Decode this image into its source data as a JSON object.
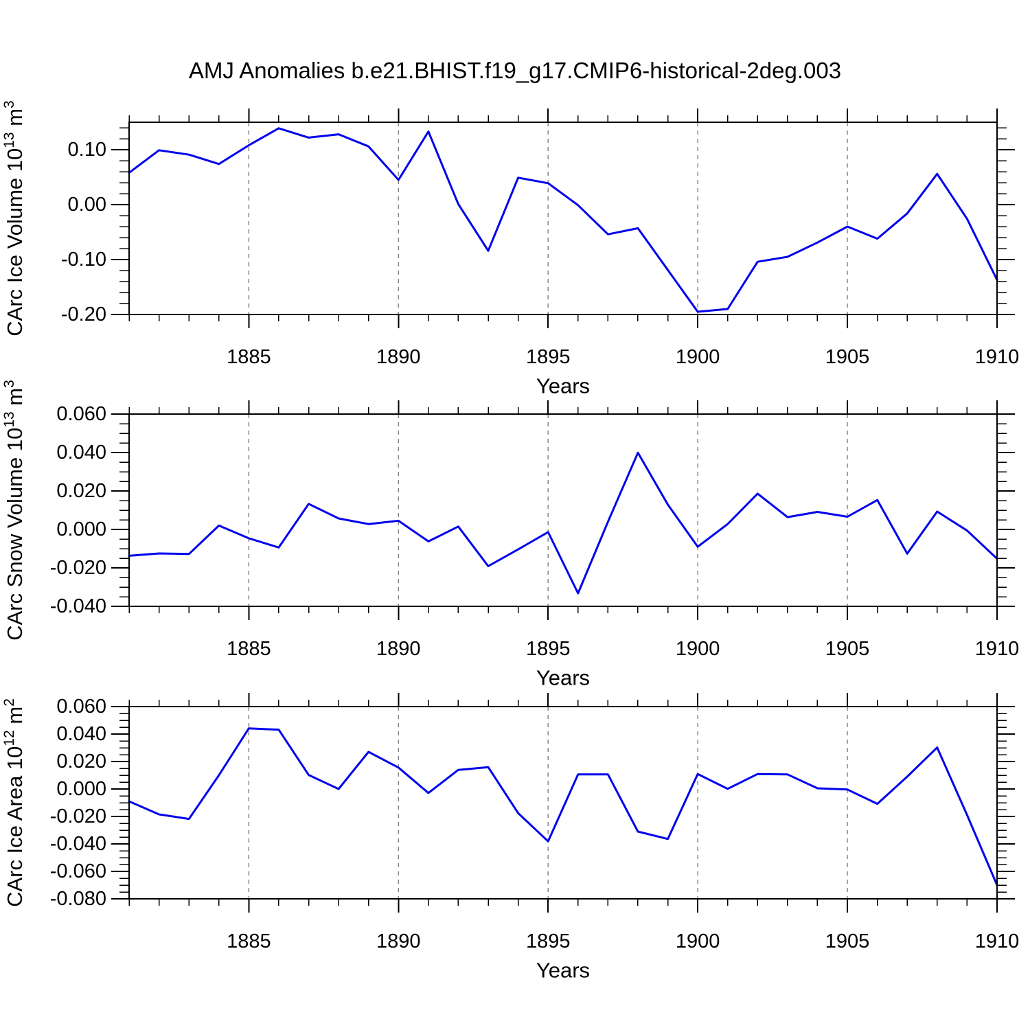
{
  "title": "AMJ Anomalies b.e21.BHIST.f19_g17.CMIP6-historical-2deg.003",
  "colors": {
    "line": "#0000ee",
    "grid": "#888888",
    "frame": "#000000",
    "text": "#000000",
    "background": "#ffffff"
  },
  "chart_data": [
    {
      "id": "ice-volume",
      "type": "line",
      "ylabel": "CArc Ice Volume 10^13 m^3",
      "ylabel_parts": [
        {
          "t": "CArc Ice Volume 10"
        },
        {
          "t": "13",
          "sup": true
        },
        {
          "t": " m"
        },
        {
          "t": "3",
          "sup": true
        }
      ],
      "xlabel": "Years",
      "xlim": [
        1881,
        1910
      ],
      "ylim": [
        -0.2,
        0.15
      ],
      "yminor": 0.02,
      "major_every": 5,
      "yticks": [
        {
          "v": -0.2,
          "label": "-0.20"
        },
        {
          "v": -0.1,
          "label": "-0.10"
        },
        {
          "v": 0.0,
          "label": "0.00"
        },
        {
          "v": 0.1,
          "label": "0.10"
        }
      ],
      "xticks": [
        {
          "v": 1885,
          "label": "1885"
        },
        {
          "v": 1890,
          "label": "1890"
        },
        {
          "v": 1895,
          "label": "1895"
        },
        {
          "v": 1900,
          "label": "1900"
        },
        {
          "v": 1905,
          "label": "1905"
        },
        {
          "v": 1910,
          "label": "1910"
        }
      ],
      "grid_x": [
        1885,
        1890,
        1895,
        1900,
        1905
      ],
      "years": [
        1881,
        1882,
        1883,
        1884,
        1885,
        1886,
        1887,
        1888,
        1889,
        1890,
        1891,
        1892,
        1893,
        1894,
        1895,
        1896,
        1897,
        1898,
        1899,
        1900,
        1901,
        1902,
        1903,
        1904,
        1905,
        1906,
        1907,
        1908,
        1909,
        1910
      ],
      "values": [
        0.058,
        0.099,
        0.091,
        0.074,
        0.108,
        0.139,
        0.122,
        0.128,
        0.106,
        0.045,
        0.133,
        0.001,
        -0.084,
        0.049,
        0.039,
        -0.001,
        -0.054,
        -0.043,
        -0.119,
        -0.195,
        -0.19,
        -0.104,
        -0.095,
        -0.069,
        -0.04,
        -0.062,
        -0.016,
        0.056,
        -0.026,
        -0.137
      ]
    },
    {
      "id": "snow-volume",
      "type": "line",
      "ylabel": "CArc Snow Volume 10^13 m^3",
      "ylabel_parts": [
        {
          "t": "CArc Snow Volume 10"
        },
        {
          "t": "13",
          "sup": true
        },
        {
          "t": " m"
        },
        {
          "t": "3",
          "sup": true
        }
      ],
      "xlabel": "Years",
      "xlim": [
        1881,
        1910
      ],
      "ylim": [
        -0.04,
        0.06
      ],
      "yminor": 0.005,
      "major_every": 4,
      "yticks": [
        {
          "v": -0.04,
          "label": "-0.040"
        },
        {
          "v": -0.02,
          "label": "-0.020"
        },
        {
          "v": 0.0,
          "label": "0.000"
        },
        {
          "v": 0.02,
          "label": "0.020"
        },
        {
          "v": 0.04,
          "label": "0.040"
        },
        {
          "v": 0.06,
          "label": "0.060"
        }
      ],
      "xticks": [
        {
          "v": 1885,
          "label": "1885"
        },
        {
          "v": 1890,
          "label": "1890"
        },
        {
          "v": 1895,
          "label": "1895"
        },
        {
          "v": 1900,
          "label": "1900"
        },
        {
          "v": 1905,
          "label": "1905"
        },
        {
          "v": 1910,
          "label": "1910"
        }
      ],
      "grid_x": [
        1885,
        1890,
        1895,
        1900,
        1905
      ],
      "years": [
        1881,
        1882,
        1883,
        1884,
        1885,
        1886,
        1887,
        1888,
        1889,
        1890,
        1891,
        1892,
        1893,
        1894,
        1895,
        1896,
        1897,
        1898,
        1899,
        1900,
        1901,
        1902,
        1903,
        1904,
        1905,
        1906,
        1907,
        1908,
        1909,
        1910
      ],
      "values": [
        -0.0137,
        -0.0125,
        -0.0128,
        0.002,
        -0.0046,
        -0.0094,
        0.0133,
        0.0057,
        0.0028,
        0.0045,
        -0.0062,
        0.0015,
        -0.0191,
        -0.0104,
        -0.0014,
        -0.0332,
        0.004,
        0.0399,
        0.0129,
        -0.009,
        0.0028,
        0.0186,
        0.0064,
        0.0091,
        0.0066,
        0.0153,
        -0.0126,
        0.0093,
        -0.0006,
        -0.0152
      ]
    },
    {
      "id": "ice-area",
      "type": "line",
      "ylabel": "CArc Ice Area 10^12 m^2",
      "ylabel_parts": [
        {
          "t": "CArc Ice Area 10"
        },
        {
          "t": "12",
          "sup": true
        },
        {
          "t": " m"
        },
        {
          "t": "2",
          "sup": true
        }
      ],
      "xlabel": "Years",
      "xlim": [
        1881,
        1910
      ],
      "ylim": [
        -0.08,
        0.06
      ],
      "yminor": 0.005,
      "major_every": 4,
      "yticks": [
        {
          "v": -0.08,
          "label": "-0.080"
        },
        {
          "v": -0.06,
          "label": "-0.060"
        },
        {
          "v": -0.04,
          "label": "-0.040"
        },
        {
          "v": -0.02,
          "label": "-0.020"
        },
        {
          "v": 0.0,
          "label": "0.000"
        },
        {
          "v": 0.02,
          "label": "0.020"
        },
        {
          "v": 0.04,
          "label": "0.040"
        },
        {
          "v": 0.06,
          "label": "0.060"
        }
      ],
      "xticks": [
        {
          "v": 1885,
          "label": "1885"
        },
        {
          "v": 1890,
          "label": "1890"
        },
        {
          "v": 1895,
          "label": "1895"
        },
        {
          "v": 1900,
          "label": "1900"
        },
        {
          "v": 1905,
          "label": "1905"
        },
        {
          "v": 1910,
          "label": "1910"
        }
      ],
      "grid_x": [
        1885,
        1890,
        1895,
        1900,
        1905
      ],
      "years": [
        1881,
        1882,
        1883,
        1884,
        1885,
        1886,
        1887,
        1888,
        1889,
        1890,
        1891,
        1892,
        1893,
        1894,
        1895,
        1896,
        1897,
        1898,
        1899,
        1900,
        1901,
        1902,
        1903,
        1904,
        1905,
        1906,
        1907,
        1908,
        1909,
        1910
      ],
      "values": [
        -0.009,
        -0.0185,
        -0.0218,
        0.01,
        0.0441,
        0.0432,
        0.0102,
        0.0,
        0.027,
        0.0156,
        -0.0029,
        0.0139,
        0.0159,
        -0.0176,
        -0.0381,
        0.0106,
        0.0106,
        -0.031,
        -0.0364,
        0.0109,
        0.0001,
        0.0109,
        0.0106,
        0.0005,
        -0.0004,
        -0.0108,
        0.009,
        0.0302,
        -0.019,
        -0.07
      ]
    }
  ]
}
